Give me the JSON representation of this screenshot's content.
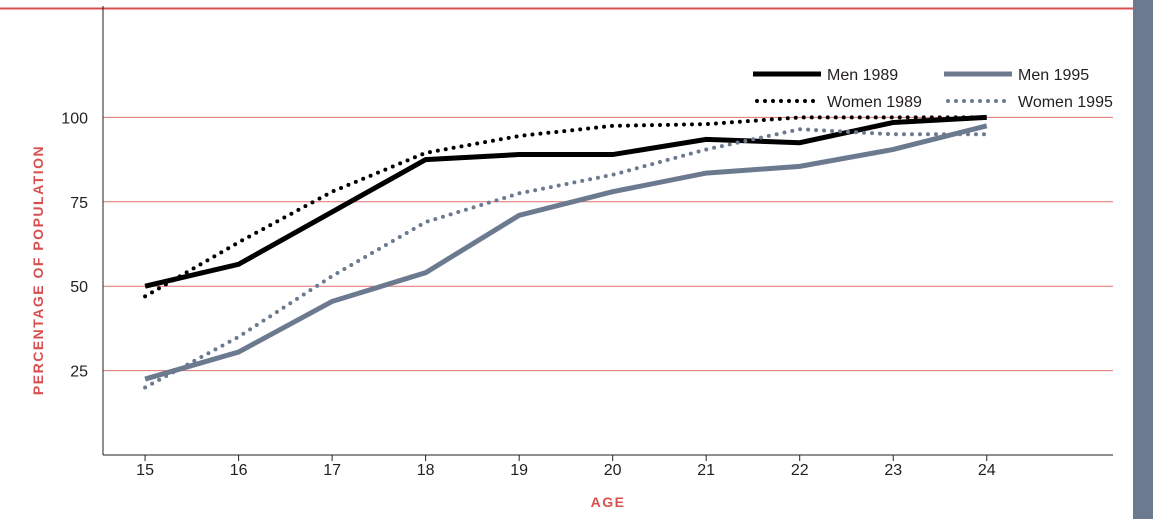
{
  "chart_data": {
    "type": "line",
    "xlabel": "AGE",
    "ylabel": "PERCENTAGE OF POPULATION",
    "x": [
      15,
      16,
      17,
      18,
      19,
      20,
      21,
      22,
      23,
      24
    ],
    "xlim": [
      14.55,
      25.35
    ],
    "ylim": [
      0,
      133
    ],
    "yticks": [
      25,
      50,
      75,
      100
    ],
    "grid": true,
    "legend_position": "top-right",
    "series": [
      {
        "name": "Men 1989",
        "values": [
          50,
          56.5,
          72,
          87.5,
          89,
          89,
          93.5,
          92.5,
          98.5,
          100
        ],
        "color": "#000000",
        "style": "solid"
      },
      {
        "name": "Women 1989",
        "values": [
          47,
          63,
          78,
          89.5,
          94.5,
          97.5,
          98,
          100,
          100,
          100
        ],
        "color": "#000000",
        "style": "dotted"
      },
      {
        "name": "Men 1995",
        "values": [
          22.5,
          30.5,
          45.5,
          54,
          71,
          78,
          83.5,
          85.5,
          90.5,
          97.5
        ],
        "color": "#6b7a8f",
        "style": "solid"
      },
      {
        "name": "Women 1995",
        "values": [
          20,
          35,
          53,
          69,
          77.5,
          83,
          90.5,
          96.5,
          95,
          95
        ],
        "color": "#6b7a8f",
        "style": "dotted"
      }
    ]
  },
  "colors": {
    "grid": "#e07070",
    "axis": "#231f20",
    "accent": "#d94f4f",
    "sidebar": "#6b7a8f"
  }
}
